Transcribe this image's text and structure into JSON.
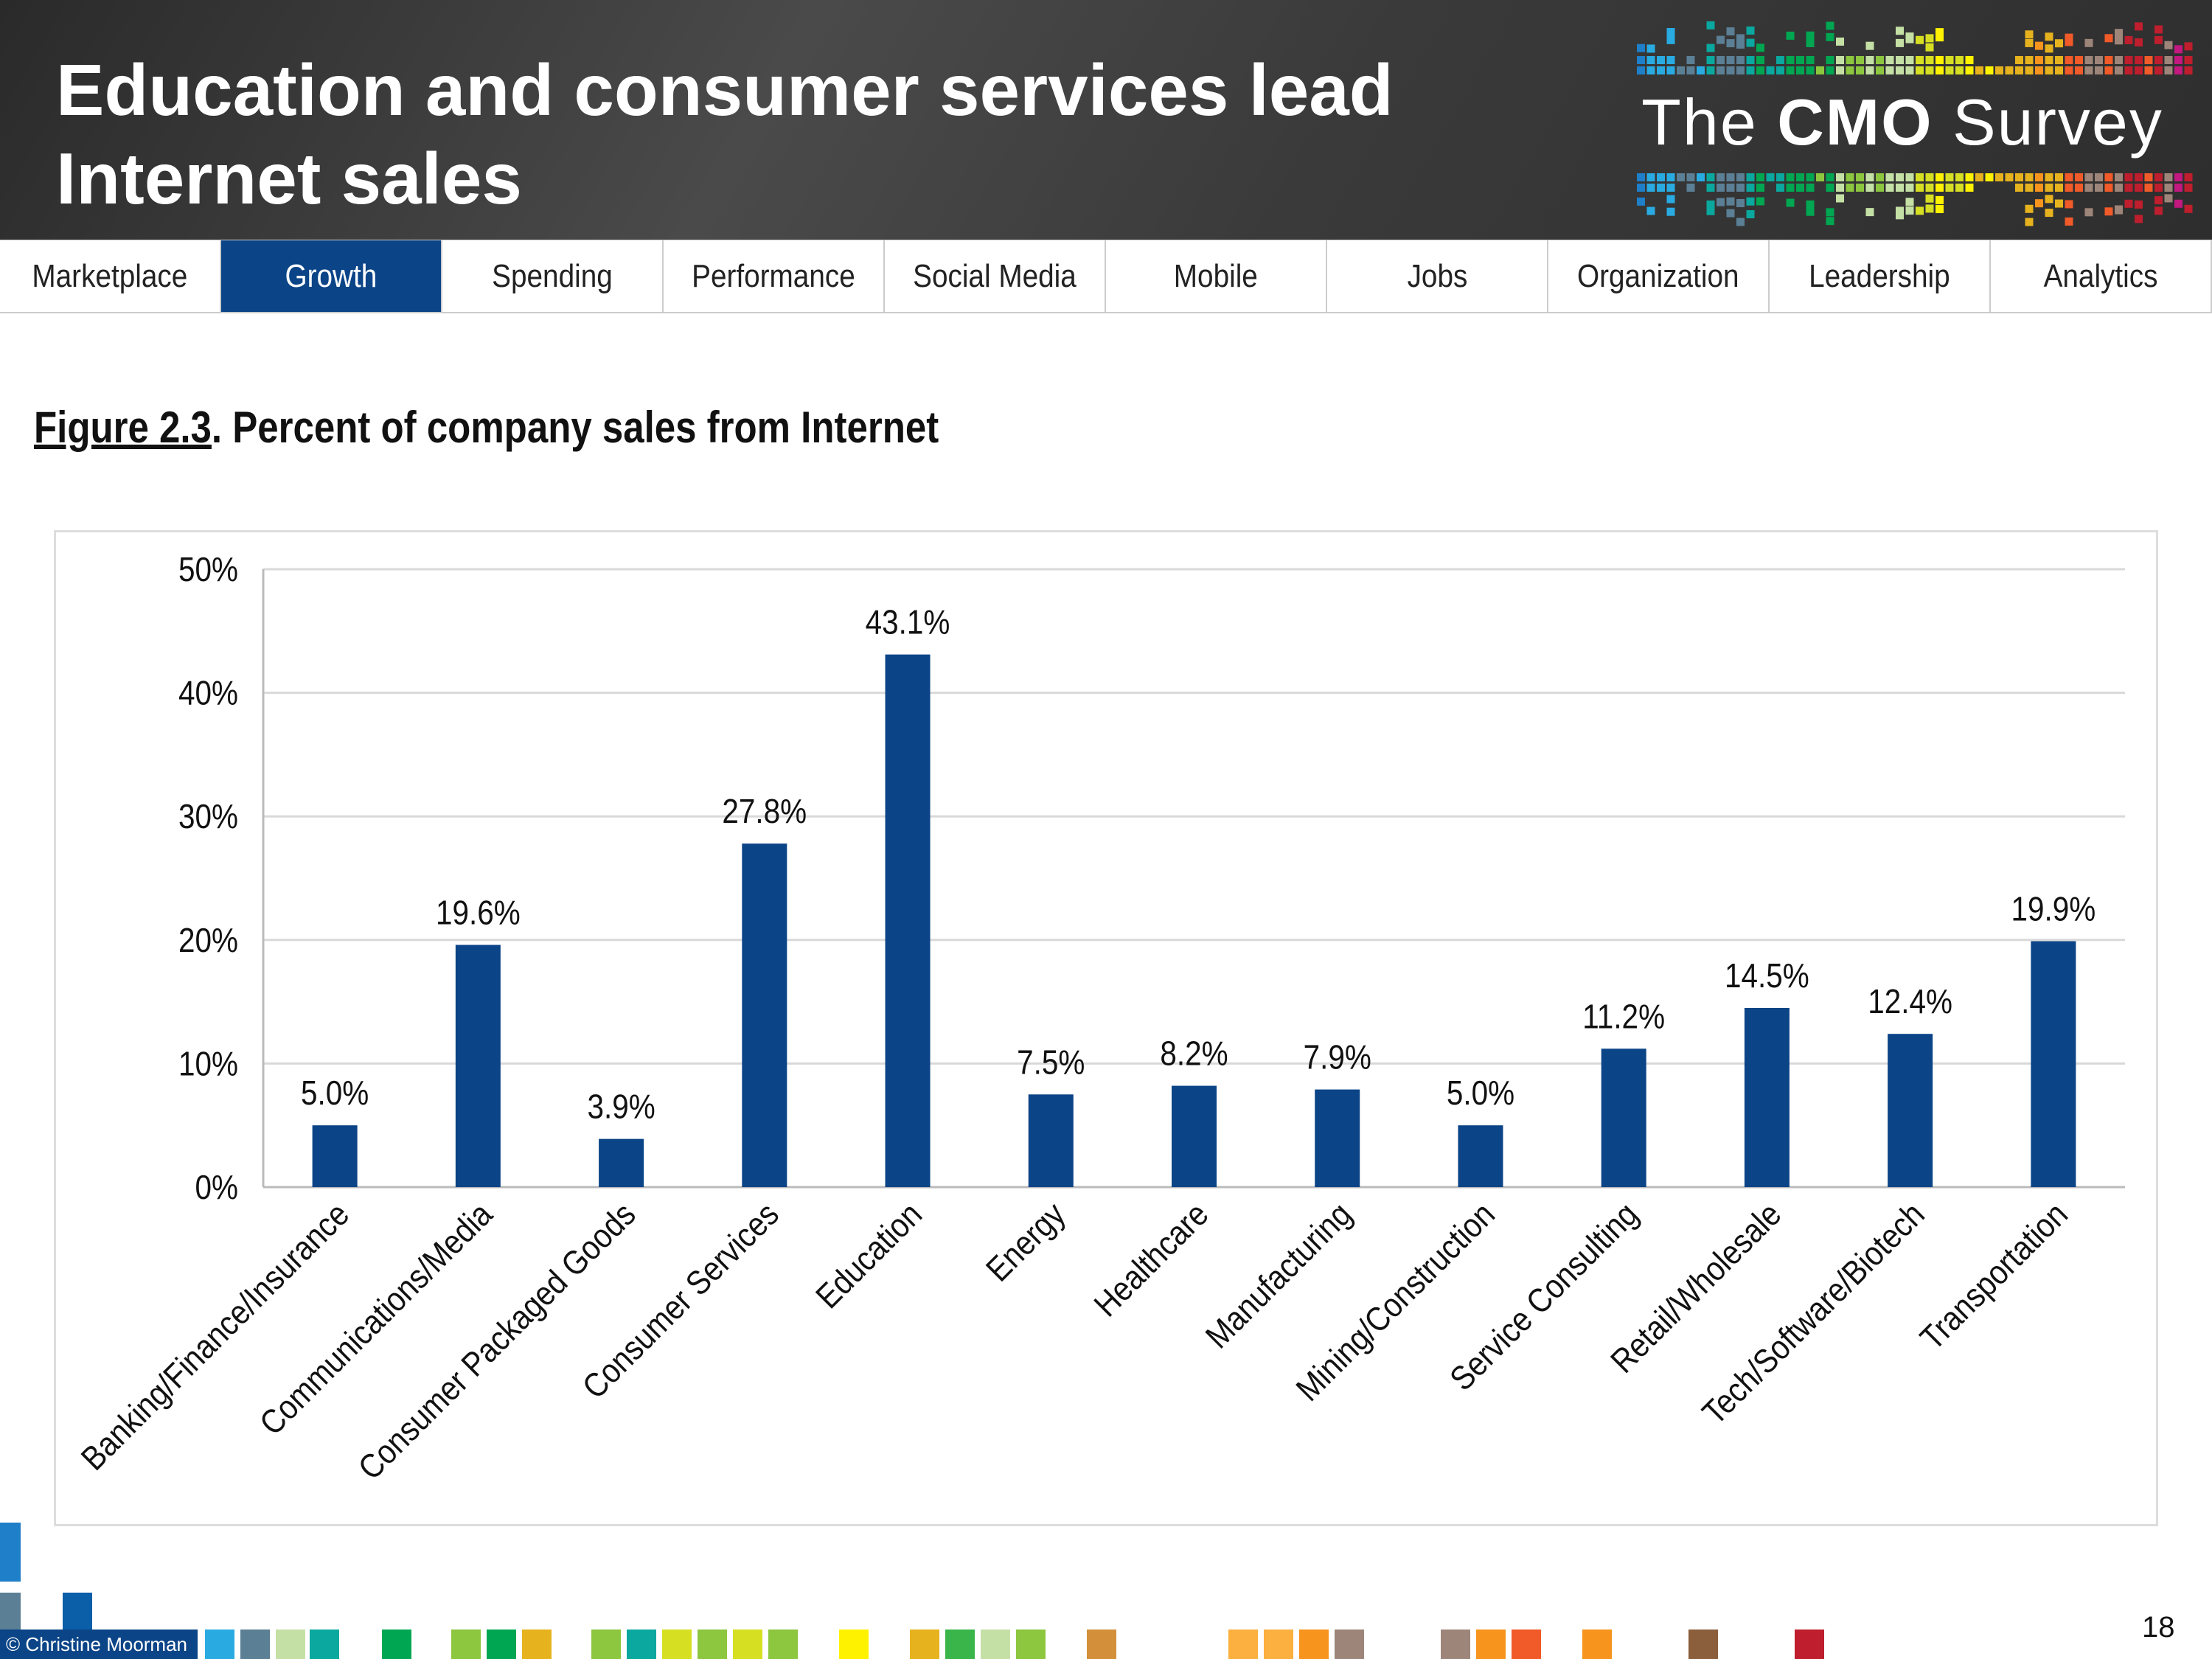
{
  "header": {
    "title_line1": "Education and consumer services lead",
    "title_line2": "Internet sales",
    "logo": {
      "prefix": "The",
      "brand": "CMO",
      "suffix": "Survey"
    }
  },
  "nav": {
    "tabs": [
      {
        "label": "Marketplace",
        "active": false
      },
      {
        "label": "Growth",
        "active": true
      },
      {
        "label": "Spending",
        "active": false
      },
      {
        "label": "Performance",
        "active": false
      },
      {
        "label": "Social Media",
        "active": false
      },
      {
        "label": "Mobile",
        "active": false
      },
      {
        "label": "Jobs",
        "active": false
      },
      {
        "label": "Organization",
        "active": false
      },
      {
        "label": "Leadership",
        "active": false
      },
      {
        "label": "Analytics",
        "active": false
      }
    ]
  },
  "figure": {
    "number": "Figure 2.3",
    "caption": ".  Percent of company sales from Internet"
  },
  "colors": {
    "bar": "#0b4487",
    "nav_active": "#0b4487",
    "grid": "#d9d9d9"
  },
  "chart_data": {
    "type": "bar",
    "categories": [
      "Banking/Finance/Insurance",
      "Communications/Media",
      "Consumer Packaged Goods",
      "Consumer Services",
      "Education",
      "Energy",
      "Healthcare",
      "Manufacturing",
      "Mining/Construction",
      "Service Consulting",
      "Retail/Wholesale",
      "Tech/Software/Biotech",
      "Transportation"
    ],
    "values": [
      5.0,
      19.6,
      3.9,
      27.8,
      43.1,
      7.5,
      8.2,
      7.9,
      5.0,
      11.2,
      14.5,
      12.4,
      19.9
    ],
    "data_labels": [
      "5.0%",
      "19.6%",
      "3.9%",
      "27.8%",
      "43.1%",
      "7.5%",
      "8.2%",
      "7.9%",
      "5.0%",
      "11.2%",
      "14.5%",
      "12.4%",
      "19.9%"
    ],
    "yticks": [
      "0%",
      "10%",
      "20%",
      "30%",
      "40%",
      "50%"
    ],
    "ylim": [
      0,
      50
    ],
    "grid": true,
    "legend": "none"
  },
  "footer": {
    "copyright": "© Christine Moorman",
    "page": "18"
  }
}
